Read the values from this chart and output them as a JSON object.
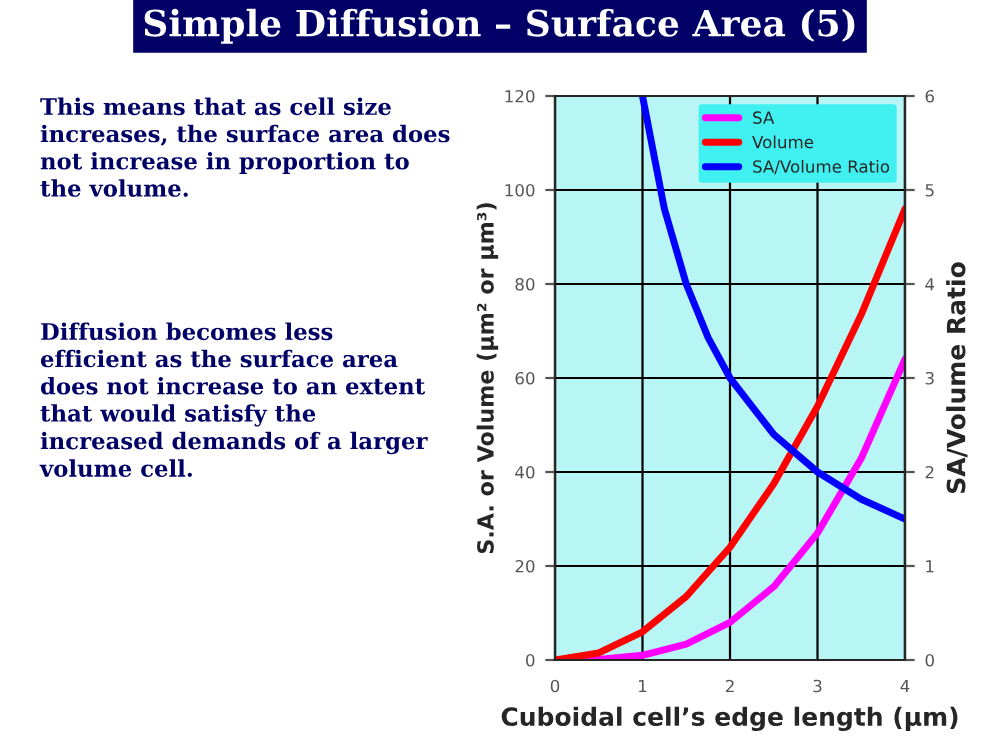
{
  "chart_data": {
    "type": "line",
    "title": "Simple Diffusion – Surface Area (5)",
    "annotations": [
      "This means that as cell size\nincreases, the surface area does\nnot increase in proportion to\nthe volume.",
      "Diffusion becomes less\nefficient as the surface area\ndoes not increase to an extent\nthat would satisfy the\nincreased demands of a larger\nvolume cell."
    ],
    "xlabel": "Cuboidal cell’s edge length (μm)",
    "ylabel": "S.A. or Volume (μm² or μm³)",
    "y2label": "SA/Volume Ratio",
    "x": [
      0,
      0.5,
      1,
      1.5,
      2,
      2.5,
      3,
      3.5,
      4
    ],
    "series": [
      {
        "name": "SA",
        "color": "#ff00ff",
        "values": [
          0,
          0.1,
          1,
          3.4,
          8,
          15.6,
          27,
          42.9,
          64
        ]
      },
      {
        "name": "Volume",
        "color": "#ff0000",
        "values": [
          0,
          1.5,
          6,
          13.5,
          24,
          37.5,
          54,
          73.5,
          96
        ]
      },
      {
        "name": "SA/Volume Ratio",
        "color": "#0000ff",
        "axis": "y2",
        "x": [
          1,
          1.25,
          1.5,
          1.75,
          2,
          2.5,
          3,
          3.5,
          4
        ],
        "values": [
          6,
          4.8,
          4,
          3.43,
          3,
          2.4,
          2,
          1.71,
          1.5
        ]
      }
    ],
    "xlim": [
      0,
      4
    ],
    "xticks": [
      0,
      1,
      2,
      3,
      4
    ],
    "ylim": [
      0,
      120
    ],
    "yticks": [
      0,
      20,
      40,
      60,
      80,
      100,
      120
    ],
    "y2lim": [
      0,
      6
    ],
    "y2ticks": [
      0,
      1,
      2,
      3,
      4,
      5,
      6
    ],
    "grid": true,
    "legend": "top right",
    "marker": "none",
    "line_style": "solid"
  }
}
